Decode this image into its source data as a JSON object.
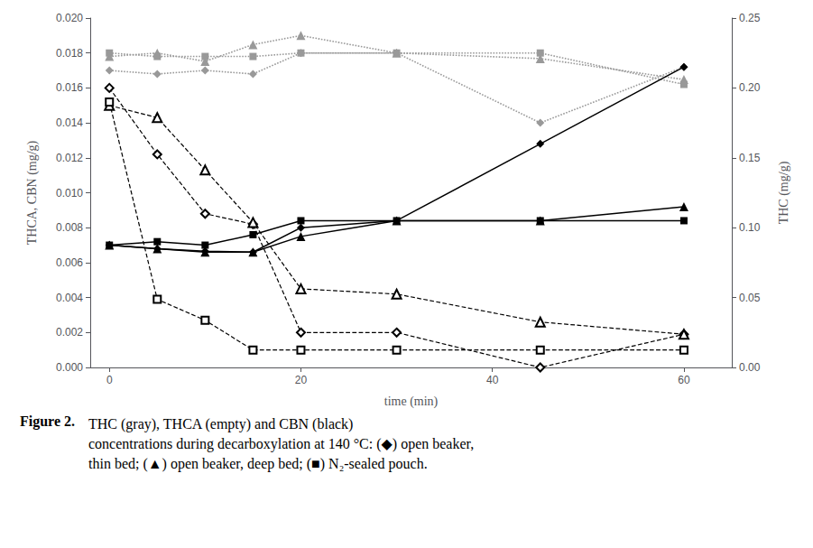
{
  "chart_data": {
    "type": "line",
    "xlabel": "time (min)",
    "ylabel": "THCA, CBN (mg/g)",
    "y2label": "THC (mg/g)",
    "annotations": [
      "Figure 2.",
      "THC (gray), THCA (empty) and CBN (black)\nconcentrations during decarboxylation at 140 °C: (◆) open beaker,\nthin bed; (▲) open beaker, deep bed; (■) N₂-sealed pouch."
    ],
    "grid": false,
    "x": [
      0,
      5,
      10,
      15,
      20,
      30,
      45,
      60
    ],
    "xlim": [
      -2,
      65
    ],
    "xticks": [
      0,
      20,
      40,
      60
    ],
    "ylim": [
      0.0,
      0.02
    ],
    "yticks": [
      {
        "value": 0,
        "label": "0.000"
      },
      {
        "value": 0.002,
        "label": "0.002"
      },
      {
        "value": 0.004,
        "label": "0.004"
      },
      {
        "value": 0.006,
        "label": "0.006"
      },
      {
        "value": 0.008,
        "label": "0.008"
      },
      {
        "value": 0.01,
        "label": "0.010"
      },
      {
        "value": 0.012,
        "label": "0.012"
      },
      {
        "value": 0.014,
        "label": "0.014"
      },
      {
        "value": 0.016,
        "label": "0.016"
      },
      {
        "value": 0.018,
        "label": "0.018"
      },
      {
        "value": 0.02,
        "label": "0.020"
      }
    ],
    "y2lim": [
      0.0,
      0.25
    ],
    "y2ticks": [
      {
        "value": 0,
        "label": "0.00"
      },
      {
        "value": 0.05,
        "label": "0.05"
      },
      {
        "value": 0.1,
        "label": "0.10"
      },
      {
        "value": 0.15,
        "label": "0.15"
      },
      {
        "value": 0.2,
        "label": "0.20"
      },
      {
        "value": 0.25,
        "label": "0.25"
      }
    ],
    "series": [
      {
        "axis": "y2",
        "color": "#999999",
        "marker": "diamond",
        "line_style": "dotted",
        "values": [
          0.2125,
          0.21,
          0.2125,
          0.21,
          0.225,
          0.225,
          0.175,
          0.215
        ]
      },
      {
        "axis": "y2",
        "color": "#999999",
        "marker": "triangle",
        "line_style": "dotted",
        "values": [
          0.2225,
          0.225,
          0.219,
          0.231,
          0.2375,
          0.225,
          0.221,
          0.206
        ]
      },
      {
        "axis": "y2",
        "color": "#999999",
        "marker": "square",
        "line_style": "dotted",
        "values": [
          0.225,
          0.2225,
          0.2225,
          0.2225,
          0.225,
          0.225,
          0.225,
          0.2025
        ]
      },
      {
        "axis": "y",
        "color": "#000000",
        "marker": "open_diamond",
        "line_style": "dashed",
        "values": [
          0.016,
          0.0122,
          0.0088,
          0.0082,
          0.002,
          0.002,
          0.0,
          0.0019
        ]
      },
      {
        "axis": "y",
        "color": "#000000",
        "marker": "open_triangle",
        "line_style": "dashed",
        "values": [
          0.015,
          0.0143,
          0.0113,
          0.0083,
          0.0045,
          0.0042,
          0.0026,
          0.0019
        ]
      },
      {
        "axis": "y",
        "color": "#000000",
        "marker": "open_square",
        "line_style": "dashed",
        "values": [
          0.0152,
          0.0039,
          0.0027,
          0.001,
          0.001,
          0.001,
          0.001,
          0.001
        ]
      },
      {
        "axis": "y",
        "color": "#000000",
        "marker": "diamond",
        "line_style": "solid",
        "values": [
          0.007,
          0.0068,
          0.00665,
          0.0066,
          0.008,
          0.0084,
          0.0128,
          0.0172
        ]
      },
      {
        "axis": "y",
        "color": "#000000",
        "marker": "triangle",
        "line_style": "solid",
        "values": [
          0.007,
          0.0068,
          0.0066,
          0.0066,
          0.0075,
          0.0084,
          0.0084,
          0.0092
        ]
      },
      {
        "axis": "y",
        "color": "#000000",
        "marker": "square",
        "line_style": "solid",
        "values": [
          0.007,
          0.0072,
          0.007,
          0.0076,
          0.0084,
          0.0084,
          0.0084,
          0.0084
        ]
      }
    ]
  }
}
